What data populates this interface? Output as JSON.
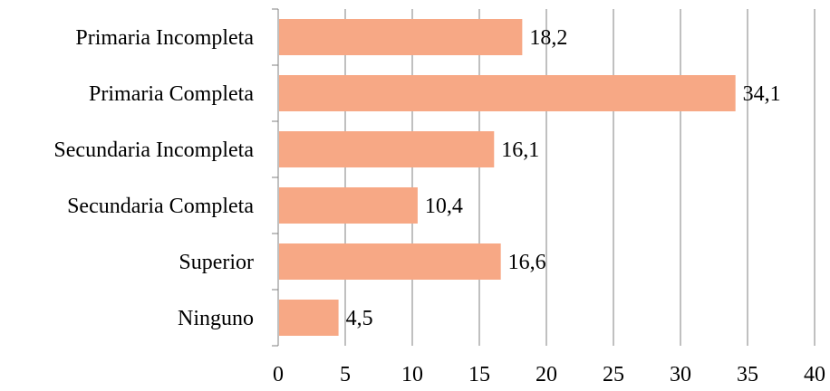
{
  "chart_data": {
    "type": "bar",
    "orientation": "horizontal",
    "categories": [
      "Primaria Incompleta",
      "Primaria Completa",
      "Secundaria Incompleta",
      "Secundaria Completa",
      "Superior",
      "Ninguno"
    ],
    "values": [
      18.2,
      34.1,
      16.1,
      10.4,
      16.6,
      4.5
    ],
    "value_labels": [
      "18,2",
      "34,1",
      "16,1",
      "10,4",
      "16,6",
      "4,5"
    ],
    "xlim": [
      0,
      40
    ],
    "x_ticks": [
      0,
      5,
      10,
      15,
      20,
      25,
      30,
      35,
      40
    ],
    "x_tick_labels": [
      "0",
      "5",
      "10",
      "15",
      "20",
      "25",
      "30",
      "35",
      "40"
    ],
    "grid": true,
    "legend": "none",
    "bar_color": "#f7a885",
    "title": "",
    "xlabel": "",
    "ylabel": ""
  }
}
